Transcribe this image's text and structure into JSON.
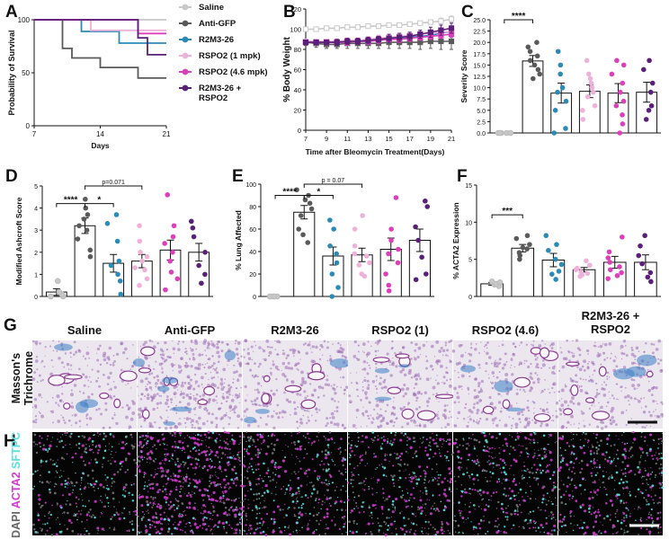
{
  "groups": {
    "saline": {
      "name": "Saline",
      "color": "#c8c8c8"
    },
    "antigfp": {
      "name": "Anti-GFP",
      "color": "#5a5a5a"
    },
    "r2m3": {
      "name": "R2M3-26",
      "color": "#2b8bb5"
    },
    "rspo2_1": {
      "name": "RSPO2 (1 mpk)",
      "color": "#eeb1da"
    },
    "rspo2_46": {
      "name": "RSPO2 (4.6 mpk)",
      "color": "#dd3fbb"
    },
    "combo": {
      "name": "R2M3-26 + RSPO2",
      "color": "#5a1f78"
    }
  },
  "panel_letters": {
    "A": "A",
    "B": "B",
    "C": "C",
    "D": "D",
    "E": "E",
    "F": "F",
    "G": "G",
    "H": "H"
  },
  "chart_data": [
    {
      "id": "A",
      "type": "line",
      "step": true,
      "ylabel": "Probability of Survival",
      "xlabel": "Days",
      "xlim": [
        7,
        21
      ],
      "ylim": [
        0,
        100
      ],
      "xticks": [
        7,
        14,
        21
      ],
      "yticks": [
        0,
        50,
        100
      ],
      "legend": [
        "Saline",
        "Anti-GFP",
        "R2M3-26",
        "RSPO2 (1 mpk)",
        "RSPO2 (4.6 mpk)",
        "R2M3-26 + RSPO2"
      ],
      "series": [
        {
          "key": "saline",
          "points": [
            [
              7,
              100
            ],
            [
              21,
              100
            ]
          ]
        },
        {
          "key": "antigfp",
          "points": [
            [
              7,
              100
            ],
            [
              10,
              100
            ],
            [
              10,
              73
            ],
            [
              11,
              73
            ],
            [
              11,
              64
            ],
            [
              14,
              64
            ],
            [
              14,
              55
            ],
            [
              18,
              55
            ],
            [
              18,
              45
            ],
            [
              21,
              45
            ]
          ]
        },
        {
          "key": "r2m3",
          "points": [
            [
              7,
              100
            ],
            [
              12,
              100
            ],
            [
              12,
              89
            ],
            [
              16,
              89
            ],
            [
              16,
              78
            ],
            [
              21,
              78
            ]
          ]
        },
        {
          "key": "rspo2_1",
          "points": [
            [
              7,
              100
            ],
            [
              13,
              100
            ],
            [
              13,
              90
            ],
            [
              21,
              90
            ]
          ]
        },
        {
          "key": "rspo2_46",
          "points": [
            [
              7,
              100
            ],
            [
              18,
              100
            ],
            [
              18,
              87
            ],
            [
              21,
              87
            ]
          ]
        },
        {
          "key": "combo",
          "points": [
            [
              7,
              100
            ],
            [
              18,
              100
            ],
            [
              18,
              83
            ],
            [
              19,
              83
            ],
            [
              19,
              67
            ],
            [
              21,
              67
            ]
          ]
        }
      ]
    },
    {
      "id": "B",
      "type": "line",
      "ylabel": "% Body Weight",
      "xlabel": "Time after Bleomycin Treatment(Days)",
      "xlim": [
        7,
        21
      ],
      "ylim": [
        0,
        120
      ],
      "xticks": [
        7,
        9,
        11,
        13,
        15,
        17,
        19,
        21
      ],
      "yticks": [
        0,
        20,
        40,
        60,
        80,
        100,
        120
      ],
      "series": [
        {
          "key": "saline",
          "x": [
            7,
            8,
            9,
            10,
            11,
            12,
            13,
            14,
            15,
            16,
            17,
            18,
            19,
            20,
            21
          ],
          "y": [
            100,
            100,
            101,
            101,
            102,
            102,
            103,
            103,
            104,
            104,
            105,
            106,
            107,
            108,
            110
          ],
          "err": [
            2,
            2,
            2,
            2,
            2,
            2,
            2,
            2,
            2,
            2,
            2,
            2,
            2,
            3,
            3
          ]
        },
        {
          "key": "antigfp",
          "x": [
            7,
            8,
            9,
            10,
            11,
            12,
            13,
            14,
            15,
            16,
            17,
            18,
            19,
            20,
            21
          ],
          "y": [
            87,
            86,
            85,
            85,
            86,
            86,
            86,
            86,
            87,
            87,
            87,
            87,
            88,
            88,
            88
          ],
          "err": [
            3,
            4,
            4,
            4,
            5,
            5,
            5,
            5,
            6,
            6,
            6,
            7,
            7,
            8,
            8
          ]
        },
        {
          "key": "r2m3",
          "x": [
            7,
            8,
            9,
            10,
            11,
            12,
            13,
            14,
            15,
            16,
            17,
            18,
            19,
            20,
            21
          ],
          "y": [
            88,
            87,
            87,
            87,
            88,
            88,
            88,
            89,
            90,
            91,
            92,
            93,
            94,
            96,
            98
          ],
          "err": [
            2,
            2,
            2,
            3,
            3,
            3,
            3,
            3,
            3,
            3,
            3,
            3,
            4,
            4,
            4
          ]
        },
        {
          "key": "rspo2_1",
          "x": [
            7,
            8,
            9,
            10,
            11,
            12,
            13,
            14,
            15,
            16,
            17,
            18,
            19,
            20,
            21
          ],
          "y": [
            88,
            88,
            88,
            88,
            89,
            89,
            90,
            91,
            92,
            93,
            94,
            95,
            96,
            97,
            98
          ],
          "err": [
            2,
            2,
            2,
            2,
            2,
            2,
            3,
            3,
            3,
            3,
            3,
            3,
            3,
            3,
            3
          ]
        },
        {
          "key": "rspo2_46",
          "x": [
            7,
            8,
            9,
            10,
            11,
            12,
            13,
            14,
            15,
            16,
            17,
            18,
            19,
            20,
            21
          ],
          "y": [
            87,
            87,
            87,
            87,
            87,
            88,
            88,
            89,
            90,
            90,
            91,
            92,
            93,
            94,
            95
          ],
          "err": [
            2,
            2,
            2,
            2,
            3,
            3,
            3,
            3,
            3,
            3,
            3,
            3,
            3,
            3,
            3
          ]
        },
        {
          "key": "combo",
          "x": [
            7,
            8,
            9,
            10,
            11,
            12,
            13,
            14,
            15,
            16,
            17,
            18,
            19,
            20,
            21
          ],
          "y": [
            87,
            87,
            87,
            87,
            88,
            88,
            89,
            90,
            91,
            92,
            93,
            95,
            97,
            99,
            101
          ],
          "err": [
            2,
            2,
            2,
            3,
            3,
            3,
            3,
            3,
            4,
            4,
            4,
            4,
            5,
            5,
            5
          ]
        }
      ]
    },
    {
      "id": "C",
      "type": "bar",
      "ylabel": "Severity Score",
      "ylim": [
        0,
        25
      ],
      "yticks": [
        "0.0",
        "2.5",
        "5.0",
        "7.5",
        "10.0",
        "12.5",
        "15.0",
        "17.5",
        "20.0",
        "22.5",
        "25.0"
      ],
      "groups": [
        {
          "key": "saline",
          "mean": 0,
          "sem": 0,
          "points": [
            0,
            0,
            0,
            0,
            0
          ]
        },
        {
          "key": "antigfp",
          "mean": 15.9,
          "sem": 1.2,
          "points": [
            20,
            19,
            18,
            17,
            16,
            15,
            14,
            13,
            12
          ]
        },
        {
          "key": "r2m3",
          "mean": 8.8,
          "sem": 2.2,
          "points": [
            18,
            15,
            13,
            10,
            9,
            7,
            5,
            1,
            0
          ]
        },
        {
          "key": "rspo2_1",
          "mean": 9.2,
          "sem": 1.4,
          "points": [
            16,
            13,
            12,
            11,
            10,
            9,
            8,
            6,
            5,
            3
          ]
        },
        {
          "key": "rspo2_46",
          "mean": 8.8,
          "sem": 2.1,
          "points": [
            16,
            15,
            13,
            11,
            9,
            7,
            6,
            4,
            2,
            0
          ]
        },
        {
          "key": "combo",
          "mean": 9.0,
          "sem": 2.2,
          "points": [
            16,
            14,
            11,
            9,
            6,
            5,
            3
          ]
        }
      ],
      "annotations": [
        {
          "from": 0,
          "to": 1,
          "label": "****",
          "y": 25
        }
      ]
    },
    {
      "id": "D",
      "type": "bar",
      "ylabel": "Modified Ashcroft Score",
      "ylim": [
        0,
        5
      ],
      "yticks": [
        "0",
        "1",
        "2",
        "3",
        "4",
        "5"
      ],
      "groups": [
        {
          "key": "saline",
          "mean": 0.2,
          "sem": 0.15,
          "points": [
            0,
            0,
            0.1,
            0.2,
            0.7
          ]
        },
        {
          "key": "antigfp",
          "mean": 3.2,
          "sem": 0.35,
          "points": [
            4.4,
            4.0,
            3.7,
            3.5,
            3.2,
            3.0,
            2.6,
            2.1,
            1.8
          ]
        },
        {
          "key": "r2m3",
          "mean": 1.5,
          "sem": 0.4,
          "points": [
            3.7,
            3.3,
            2.5,
            1.6,
            1.4,
            1.0,
            0.7,
            0.1
          ]
        },
        {
          "key": "rspo2_1",
          "mean": 1.6,
          "sem": 0.3,
          "points": [
            3.2,
            2.5,
            2.0,
            1.8,
            1.6,
            1.3,
            1.2,
            0.8,
            0.5
          ]
        },
        {
          "key": "rspo2_46",
          "mean": 2.1,
          "sem": 0.45,
          "points": [
            4.6,
            3.2,
            2.7,
            2.4,
            2.0,
            1.6,
            1.1,
            0.8,
            0.3
          ]
        },
        {
          "key": "combo",
          "mean": 2.0,
          "sem": 0.4,
          "points": [
            3.4,
            3.1,
            2.7,
            2.0,
            1.4,
            1.0,
            0.6
          ]
        }
      ],
      "annotations": [
        {
          "from": 0,
          "to": 1,
          "label": "****",
          "y": 4.2
        },
        {
          "from": 1,
          "to": 2,
          "label": "*",
          "y": 4.2
        },
        {
          "from": 1,
          "to": 3,
          "label": "p=0.071",
          "y": 5.0
        }
      ]
    },
    {
      "id": "E",
      "type": "bar",
      "ylabel": "% Lung Affected",
      "ylim": [
        0,
        100
      ],
      "yticks": [
        "0",
        "20",
        "40",
        "60",
        "80",
        "100"
      ],
      "groups": [
        {
          "key": "saline",
          "mean": 0,
          "sem": 0,
          "points": [
            0,
            0,
            0,
            0,
            0
          ]
        },
        {
          "key": "antigfp",
          "mean": 75,
          "sem": 6,
          "points": [
            95,
            90,
            86,
            83,
            78,
            72,
            60,
            55,
            48
          ]
        },
        {
          "key": "r2m3",
          "mean": 36,
          "sem": 8,
          "points": [
            68,
            60,
            45,
            38,
            30,
            20,
            8,
            0
          ]
        },
        {
          "key": "rspo2_1",
          "mean": 37,
          "sem": 6,
          "points": [
            72,
            60,
            45,
            38,
            36,
            30,
            28,
            20,
            18
          ]
        },
        {
          "key": "rspo2_46",
          "mean": 42,
          "sem": 10,
          "points": [
            88,
            60,
            50,
            42,
            38,
            30,
            20,
            10,
            5
          ]
        },
        {
          "key": "combo",
          "mean": 50,
          "sem": 10,
          "points": [
            85,
            80,
            62,
            50,
            35,
            20,
            15
          ]
        }
      ],
      "annotations": [
        {
          "from": 0,
          "to": 1,
          "label": "****",
          "y": 90
        },
        {
          "from": 1,
          "to": 2,
          "label": "*",
          "y": 90
        },
        {
          "from": 1,
          "to": 3,
          "label": "p = 0.07",
          "y": 100
        }
      ]
    },
    {
      "id": "F",
      "type": "bar",
      "ylabel": "% ACTA2 Expression",
      "ylim": [
        0,
        15
      ],
      "yticks": [
        "0",
        "5",
        "10",
        "15"
      ],
      "groups": [
        {
          "key": "saline",
          "mean": 1.7,
          "sem": 0.2,
          "points": [
            1.4,
            1.6,
            1.7,
            1.9,
            2.0
          ]
        },
        {
          "key": "antigfp",
          "mean": 6.5,
          "sem": 0.5,
          "points": [
            8.2,
            7.8,
            7.0,
            6.6,
            6.4,
            5.9,
            5.5,
            5.0
          ]
        },
        {
          "key": "r2m3",
          "mean": 4.9,
          "sem": 0.9,
          "points": [
            8.2,
            7.0,
            6.2,
            5.0,
            4.3,
            3.4,
            3.0,
            2.3
          ]
        },
        {
          "key": "rspo2_1",
          "mean": 3.6,
          "sem": 0.3,
          "points": [
            4.8,
            4.2,
            3.8,
            3.6,
            3.3,
            3.1,
            2.9,
            2.7
          ]
        },
        {
          "key": "rspo2_46",
          "mean": 4.6,
          "sem": 0.8,
          "points": [
            8.0,
            6.0,
            5.2,
            4.6,
            4.0,
            3.6,
            3.2,
            2.8,
            2.4
          ]
        },
        {
          "key": "combo",
          "mean": 4.6,
          "sem": 1.0,
          "points": [
            8.2,
            6.8,
            5.5,
            4.4,
            3.2,
            2.6,
            2.0
          ]
        }
      ],
      "annotations": [
        {
          "from": 0,
          "to": 1,
          "label": "***",
          "y": 11
        }
      ]
    }
  ],
  "histology": {
    "row_g_label": "Masson's Trichrome",
    "row_h_label_dapi": "DAPI",
    "row_h_label_acta2": "ACTA2",
    "row_h_label_sftpc": "SFTPC",
    "columns": [
      "Saline",
      "Anti-GFP",
      "R2M3-26",
      "RSPO2 (1)",
      "RSPO2 (4.6)",
      "R2M3-26 + RSPO2"
    ],
    "tissue_colors": {
      "trichrome_bg": "#ece6ef",
      "trichrome_tissue": "#9a6ab0",
      "collagen": "#3a7fc4",
      "fluor_bg": "#050505",
      "acta2": "#d33bd3",
      "sftpc": "#58e1e1",
      "dapi": "#6a6a6a"
    }
  }
}
